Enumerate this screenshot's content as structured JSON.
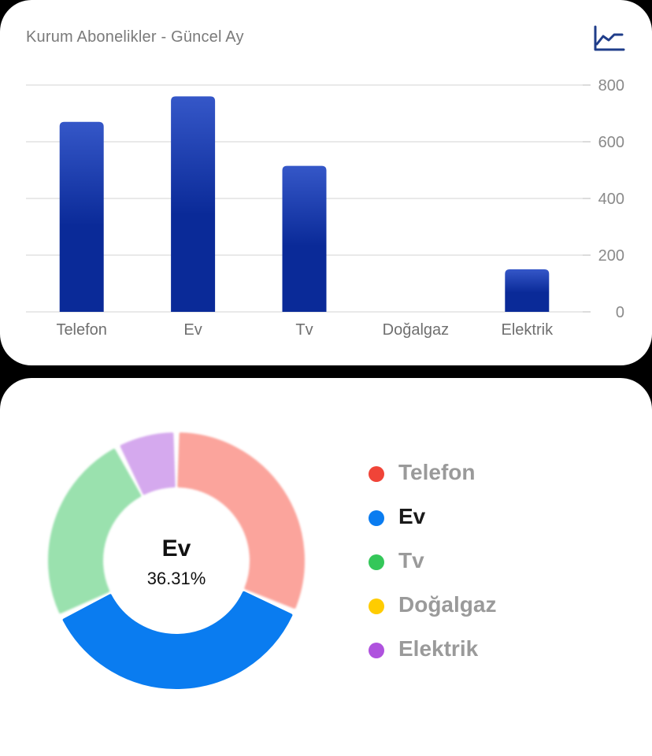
{
  "bar_panel": {
    "title": "Kurum Abonelikler - Güncel Ay",
    "chart_type_icon": "line-chart-icon"
  },
  "donut_panel": {
    "center_label": "Ev",
    "center_value": "36.31%",
    "legend": [
      {
        "label": "Telefon",
        "color": "#f04438",
        "active": false
      },
      {
        "label": "Ev",
        "color": "#0a7cf0",
        "active": true
      },
      {
        "label": "Tv",
        "color": "#34c759",
        "active": false
      },
      {
        "label": "Doğalgaz",
        "color": "#ffcc00",
        "active": false
      },
      {
        "label": "Elektrik",
        "color": "#af52de",
        "active": false
      }
    ]
  },
  "chart_data": [
    {
      "type": "bar",
      "title": "Kurum Abonelikler - Güncel Ay",
      "categories": [
        "Telefon",
        "Ev",
        "Tv",
        "Doğalgaz",
        "Elektrik"
      ],
      "values": [
        670,
        760,
        515,
        0,
        150
      ],
      "ylim": [
        0,
        800
      ],
      "yticks": [
        0,
        200,
        400,
        600,
        800
      ],
      "yaxis_position": "right",
      "grid": true,
      "bar_color_top": "#3557c8",
      "bar_color_bottom": "#0a2a98"
    },
    {
      "type": "pie",
      "donut": true,
      "categories": [
        "Telefon",
        "Ev",
        "Tv",
        "Doğalgaz",
        "Elektrik"
      ],
      "values": [
        31.51,
        36.31,
        24.54,
        0,
        7.64
      ],
      "unit": "%",
      "highlighted": "Ev",
      "colors": [
        "#fba49c",
        "#0a7cf0",
        "#9ae1ae",
        "#ffe38a",
        "#d5a9ee"
      ],
      "highlight_color": "#0a7cf0"
    }
  ]
}
